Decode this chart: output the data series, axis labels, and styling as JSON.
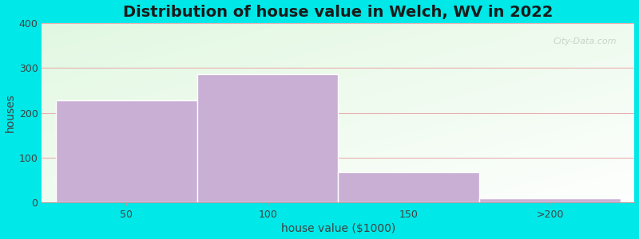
{
  "title": "Distribution of house value in Welch, WV in 2022",
  "xlabel": "house value ($1000)",
  "ylabel": "houses",
  "bar_values": [
    228,
    287,
    68,
    10
  ],
  "bar_labels": [
    "50",
    "100",
    "150",
    ">200"
  ],
  "bar_color": "#c9afd4",
  "bar_edge_color": "#ffffff",
  "ylim": [
    0,
    400
  ],
  "yticks": [
    0,
    100,
    200,
    300,
    400
  ],
  "background_outer": "#00e8e8",
  "grid_color": "#e8b0b0",
  "title_fontsize": 14,
  "axis_label_fontsize": 10,
  "tick_fontsize": 9,
  "watermark_text": "City-Data.com",
  "bar_edges": [
    0,
    1,
    2,
    3,
    4
  ]
}
